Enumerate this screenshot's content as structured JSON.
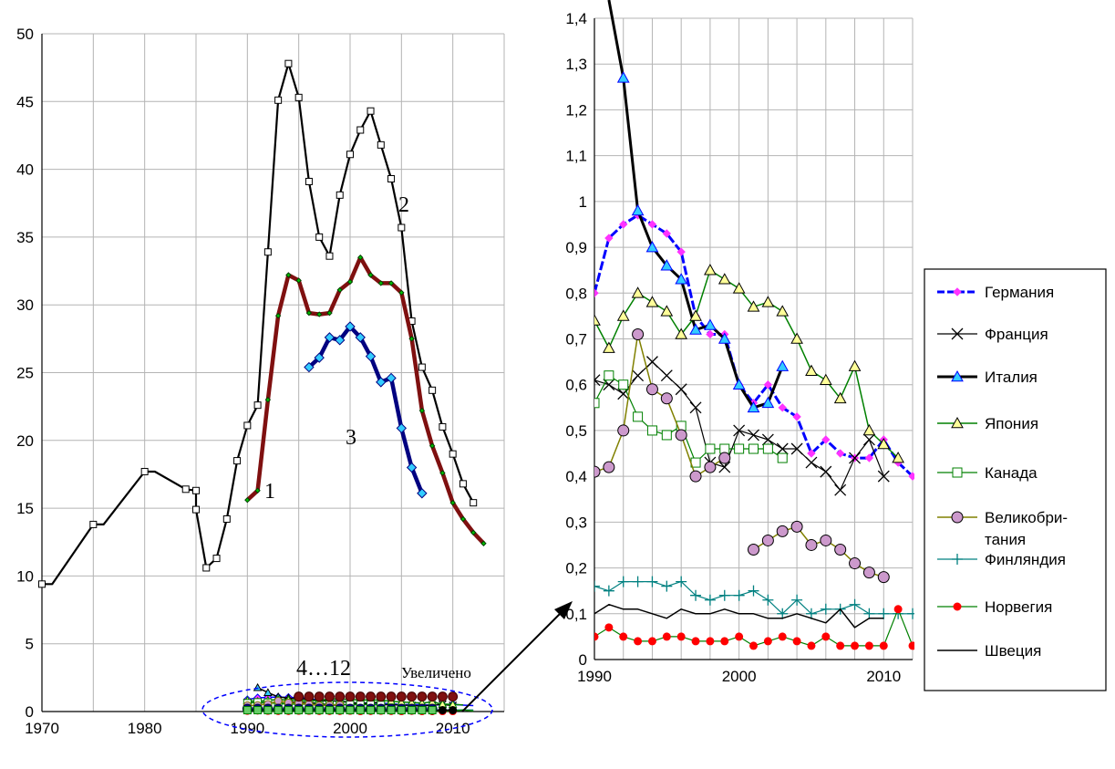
{
  "chart_data": [
    {
      "type": "line",
      "title": "",
      "xlabel": "",
      "ylabel": "",
      "xlim": [
        1970,
        2015
      ],
      "ylim": [
        0,
        50
      ],
      "x_ticks": [
        1970,
        1980,
        1990,
        2000,
        2010
      ],
      "y_ticks": [
        0,
        5,
        10,
        15,
        20,
        25,
        30,
        35,
        40,
        45,
        50
      ],
      "grid": true,
      "annotations": [
        "1",
        "2",
        "3",
        "4…12",
        "Увеличено"
      ],
      "series": [
        {
          "label": "2",
          "color": "#000000",
          "marker": "square",
          "x": [
            1970,
            1971,
            1975,
            1976,
            1980,
            1981,
            1984,
            1985,
            1985,
            1986,
            1987,
            1988,
            1989,
            1990,
            1991,
            1992,
            1993,
            1994,
            1995,
            1996,
            1997,
            1998,
            1999,
            2000,
            2001,
            2002,
            2003,
            2004,
            2005,
            2006,
            2007,
            2008,
            2009,
            2010,
            2011,
            2012
          ],
          "y": [
            9.4,
            9.4,
            13.8,
            13.8,
            17.7,
            17.7,
            16.4,
            16.3,
            14.9,
            10.6,
            11.3,
            14.2,
            18.5,
            21.1,
            22.6,
            33.9,
            45.1,
            47.8,
            45.3,
            39.1,
            35.0,
            33.6,
            38.1,
            41.1,
            42.9,
            44.3,
            41.8,
            39.3,
            35.7,
            28.8,
            25.4,
            23.7,
            21.0,
            19.0,
            16.8,
            15.4
          ]
        },
        {
          "label": "1",
          "color": "#7f1010",
          "marker": "diamond",
          "x": [
            1990,
            1991,
            1992,
            1993,
            1994,
            1995,
            1996,
            1997,
            1998,
            1999,
            2000,
            2001,
            2002,
            2003,
            2004,
            2005,
            2006,
            2007,
            2008,
            2009,
            2010,
            2011,
            2012,
            2013
          ],
          "y": [
            15.6,
            16.3,
            23.0,
            29.2,
            32.2,
            31.8,
            29.4,
            29.3,
            29.4,
            31.1,
            31.7,
            33.5,
            32.2,
            31.6,
            31.6,
            30.9,
            27.5,
            22.2,
            19.6,
            17.6,
            15.4,
            14.2,
            13.2,
            12.4
          ]
        },
        {
          "label": "3",
          "color": "#000080",
          "marker": "diamond",
          "x": [
            1996,
            1997,
            1998,
            1999,
            2000,
            2001,
            2002,
            2003,
            2004,
            2005,
            2006,
            2007
          ],
          "y": [
            25.4,
            26.1,
            27.6,
            27.4,
            28.4,
            27.6,
            26.2,
            24.3,
            24.6,
            20.9,
            18.0,
            16.1
          ]
        }
      ]
    },
    {
      "type": "line",
      "title": "",
      "xlabel": "",
      "ylabel": "",
      "xlim": [
        1990,
        2012
      ],
      "ylim": [
        0,
        1.4
      ],
      "x_ticks": [
        1990,
        2000,
        2010
      ],
      "y_ticks": [
        "0",
        "0,1",
        "0,2",
        "0,3",
        "0,4",
        "0,5",
        "0,6",
        "0,7",
        "0,8",
        "0,9",
        "1",
        "1,1",
        "1,2",
        "1,3",
        "1,4"
      ],
      "grid": true,
      "legend_position": "right",
      "series": [
        {
          "name": "Германия",
          "color": "#0000ff",
          "marker": "diamond",
          "x": [
            1990,
            1991,
            1992,
            1993,
            1994,
            1995,
            1996,
            1997,
            1998,
            1999,
            2000,
            2001,
            2002,
            2003,
            2004,
            2005,
            2006,
            2007,
            2008,
            2009,
            2010,
            2011,
            2012
          ],
          "y": [
            0.8,
            0.92,
            0.95,
            0.97,
            0.95,
            0.93,
            0.89,
            0.75,
            0.71,
            0.71,
            0.6,
            0.56,
            0.6,
            0.55,
            0.53,
            0.45,
            0.48,
            0.45,
            0.44,
            0.44,
            0.48,
            0.43,
            0.4
          ]
        },
        {
          "name": "Франция",
          "color": "#000000",
          "marker": "x",
          "x": [
            1990,
            1991,
            1992,
            1993,
            1994,
            1995,
            1996,
            1997,
            1998,
            1999,
            2000,
            2001,
            2002,
            2003,
            2004,
            2005,
            2006,
            2007,
            2008,
            2009,
            2010
          ],
          "y": [
            0.61,
            0.6,
            0.58,
            0.62,
            0.65,
            0.62,
            0.59,
            0.55,
            0.43,
            0.42,
            0.5,
            0.49,
            0.48,
            0.46,
            0.46,
            0.43,
            0.41,
            0.37,
            0.44,
            0.48,
            0.4
          ]
        },
        {
          "name": "Италия",
          "color": "#000000",
          "marker": "triangle",
          "x": [
            1991,
            1992,
            1993,
            1994,
            1995,
            1996,
            1997,
            1998,
            1999,
            2000,
            2001,
            2002,
            2003
          ],
          "y": [
            1.6,
            1.27,
            0.98,
            0.9,
            0.86,
            0.83,
            0.72,
            0.73,
            0.7,
            0.6,
            0.55,
            0.56,
            0.64
          ]
        },
        {
          "name": "Япония",
          "color": "#008000",
          "marker": "triangle",
          "x": [
            1990,
            1991,
            1992,
            1993,
            1994,
            1995,
            1996,
            1997,
            1998,
            1999,
            2000,
            2001,
            2002,
            2003,
            2004,
            2005,
            2006,
            2007,
            2008,
            2009,
            2010,
            2011
          ],
          "y": [
            0.74,
            0.68,
            0.75,
            0.8,
            0.78,
            0.76,
            0.71,
            0.75,
            0.85,
            0.83,
            0.81,
            0.77,
            0.78,
            0.76,
            0.7,
            0.63,
            0.61,
            0.57,
            0.64,
            0.5,
            0.47,
            0.44
          ]
        },
        {
          "name": "Канада",
          "color": "#008000",
          "marker": "square",
          "x": [
            1990,
            1991,
            1992,
            1993,
            1994,
            1995,
            1996,
            1997,
            1998,
            1999,
            2000,
            2001,
            2002,
            2003
          ],
          "y": [
            0.56,
            0.62,
            0.6,
            0.53,
            0.5,
            0.49,
            0.51,
            0.43,
            0.46,
            0.46,
            0.46,
            0.46,
            0.46,
            0.44
          ]
        },
        {
          "name": "Великобри-тания",
          "color": "#808000",
          "marker": "circle",
          "x": [
            1990,
            1991,
            1992,
            1993,
            1994,
            1995,
            1996,
            1997,
            1998,
            1999
          ],
          "y": [
            0.41,
            0.42,
            0.5,
            0.71,
            0.59,
            0.57,
            0.49,
            0.4,
            0.42,
            0.44
          ],
          "x2": [
            2001,
            2002,
            2003,
            2004,
            2005,
            2006,
            2007,
            2008,
            2009,
            2010
          ],
          "y2": [
            0.24,
            0.26,
            0.28,
            0.29,
            0.25,
            0.26,
            0.24,
            0.21,
            0.19,
            0.18
          ]
        },
        {
          "name": "Финляндия",
          "color": "#008080",
          "marker": "plus",
          "x": [
            1990,
            1991,
            1992,
            1993,
            1994,
            1995,
            1996,
            1997,
            1998,
            1999,
            2000,
            2001,
            2002,
            2003,
            2004,
            2005,
            2006,
            2007,
            2008,
            2009,
            2010,
            2011,
            2012
          ],
          "y": [
            0.16,
            0.15,
            0.17,
            0.17,
            0.17,
            0.16,
            0.17,
            0.14,
            0.13,
            0.14,
            0.14,
            0.15,
            0.13,
            0.1,
            0.13,
            0.1,
            0.11,
            0.11,
            0.12,
            0.1,
            0.1,
            0.1,
            0.1
          ]
        },
        {
          "name": "Норвегия",
          "color": "#008000",
          "marker": "dot",
          "marker_color": "#ff0000",
          "x": [
            1990,
            1991,
            1992,
            1993,
            1994,
            1995,
            1996,
            1997,
            1998,
            1999,
            2000,
            2001,
            2002,
            2003,
            2004,
            2005,
            2006,
            2007,
            2008,
            2009,
            2010,
            2011,
            2012
          ],
          "y": [
            0.05,
            0.07,
            0.05,
            0.04,
            0.04,
            0.05,
            0.05,
            0.04,
            0.04,
            0.04,
            0.05,
            0.03,
            0.04,
            0.05,
            0.04,
            0.03,
            0.05,
            0.03,
            0.03,
            0.03,
            0.03,
            0.11,
            0.03
          ]
        },
        {
          "name": "Швеция",
          "color": "#000000",
          "marker": "none",
          "x": [
            1990,
            1991,
            1992,
            1993,
            1994,
            1995,
            1996,
            1997,
            1998,
            1999,
            2000,
            2001,
            2002,
            2003,
            2004,
            2005,
            2006,
            2007,
            2008,
            2009,
            2010
          ],
          "y": [
            0.1,
            0.12,
            0.11,
            0.11,
            0.1,
            0.09,
            0.11,
            0.1,
            0.1,
            0.11,
            0.1,
            0.1,
            0.09,
            0.09,
            0.1,
            0.09,
            0.08,
            0.11,
            0.07,
            0.09,
            0.09
          ]
        }
      ]
    }
  ]
}
